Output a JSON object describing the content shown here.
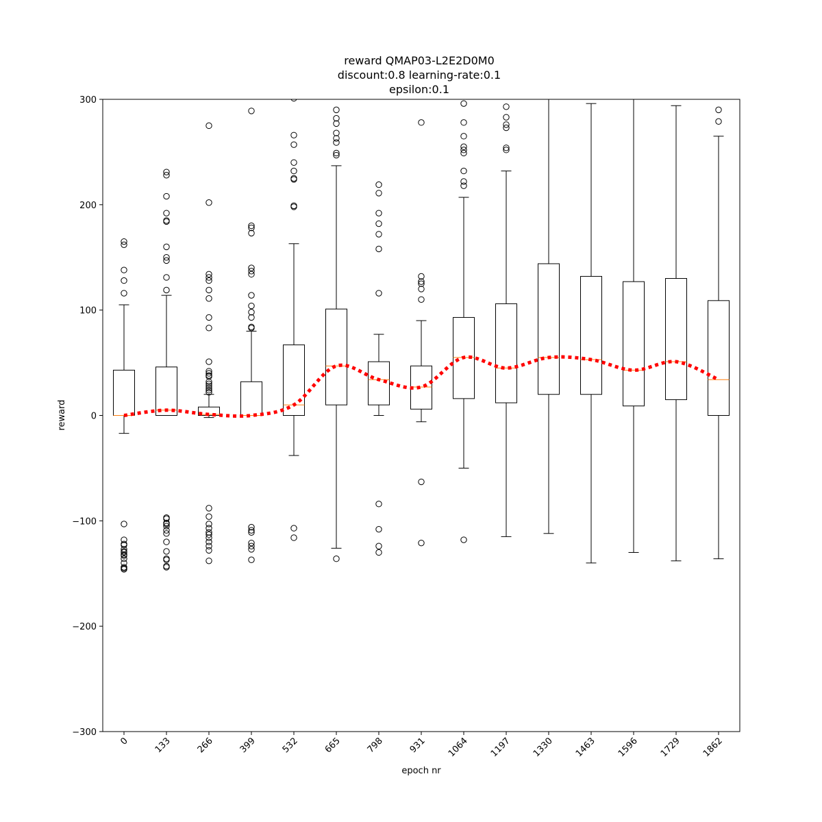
{
  "chart_data": {
    "type": "box",
    "title_lines": [
      "reward QMAP03-L2E2D0M0",
      "discount:0.8 learning-rate:0.1",
      "epsilon:0.1"
    ],
    "xlabel": "epoch nr",
    "ylabel": "reward",
    "ylim": [
      -300,
      300
    ],
    "yticks": [
      -300,
      -200,
      -100,
      0,
      100,
      200,
      300
    ],
    "ytick_labels": [
      "−300",
      "−200",
      "−100",
      "0",
      "100",
      "200",
      "300"
    ],
    "categories": [
      "0",
      "133",
      "266",
      "399",
      "532",
      "665",
      "798",
      "931",
      "1064",
      "1197",
      "1330",
      "1463",
      "1596",
      "1729",
      "1862"
    ],
    "boxes": [
      {
        "whislo": -17,
        "q1": 0,
        "med": 0,
        "q3": 43,
        "whishi": 105,
        "fliers": [
          165,
          162,
          138,
          128,
          116,
          -103,
          -118,
          -122,
          -123,
          -127,
          -129,
          -130,
          -132,
          -133,
          -136,
          -140,
          -144,
          -145,
          -146
        ]
      },
      {
        "whislo": 0,
        "q1": 0,
        "med": 5,
        "q3": 46,
        "whishi": 114,
        "fliers": [
          231,
          228,
          208,
          192,
          185,
          184,
          160,
          150,
          147,
          131,
          119,
          -97,
          -98,
          -102,
          -103,
          -105,
          -109,
          -112,
          -120,
          -129,
          -136,
          -137,
          -143,
          -144
        ]
      },
      {
        "whislo": -2,
        "q1": 0,
        "med": 1,
        "q3": 8,
        "whishi": 20,
        "fliers": [
          275,
          202,
          134,
          131,
          128,
          119,
          111,
          93,
          83,
          51,
          42,
          40,
          38,
          37,
          32,
          30,
          28,
          26,
          24,
          22,
          -88,
          -96,
          -103,
          -107,
          -111,
          -113,
          -116,
          -120,
          -124,
          -128,
          -138
        ]
      },
      {
        "whislo": 0,
        "q1": 0,
        "med": 0,
        "q3": 32,
        "whishi": 80,
        "fliers": [
          289,
          180,
          178,
          173,
          140,
          137,
          134,
          114,
          104,
          98,
          93,
          84,
          83,
          -106,
          -109,
          -111,
          -121,
          -124,
          -127,
          -137
        ]
      },
      {
        "whislo": -38,
        "q1": 0,
        "med": 10,
        "q3": 67,
        "whishi": 163,
        "fliers": [
          301,
          266,
          257,
          240,
          232,
          225,
          224,
          199,
          198,
          -107,
          -116
        ]
      },
      {
        "whislo": -126,
        "q1": 10,
        "med": 47,
        "q3": 101,
        "whishi": 237,
        "fliers": [
          290,
          282,
          277,
          268,
          263,
          259,
          249,
          247,
          -136
        ]
      },
      {
        "whislo": 0,
        "q1": 10,
        "med": 34,
        "q3": 51,
        "whishi": 77,
        "fliers": [
          219,
          211,
          192,
          182,
          172,
          158,
          116,
          -84,
          -108,
          -124,
          -130
        ]
      },
      {
        "whislo": -6,
        "q1": 6,
        "med": 27,
        "q3": 47,
        "whishi": 90,
        "fliers": [
          278,
          132,
          127,
          125,
          120,
          110,
          -63,
          -121
        ]
      },
      {
        "whislo": -50,
        "q1": 16,
        "med": 55,
        "q3": 93,
        "whishi": 207,
        "fliers": [
          296,
          278,
          265,
          255,
          252,
          249,
          232,
          222,
          218,
          -118
        ]
      },
      {
        "whislo": -115,
        "q1": 12,
        "med": 45,
        "q3": 106,
        "whishi": 232,
        "fliers": [
          293,
          283,
          276,
          273,
          254,
          252
        ]
      },
      {
        "whislo": -112,
        "q1": 20,
        "med": 55,
        "q3": 144,
        "whishi": 301,
        "fliers": []
      },
      {
        "whislo": -140,
        "q1": 20,
        "med": 53,
        "q3": 132,
        "whishi": 296,
        "fliers": []
      },
      {
        "whislo": -130,
        "q1": 9,
        "med": 43,
        "q3": 127,
        "whishi": 301,
        "fliers": []
      },
      {
        "whislo": -138,
        "q1": 15,
        "med": 51,
        "q3": 130,
        "whishi": 294,
        "fliers": []
      },
      {
        "whislo": -136,
        "q1": 0,
        "med": 34,
        "q3": 109,
        "whishi": 265,
        "fliers": [
          290,
          279
        ]
      }
    ],
    "trend": [
      0,
      5,
      1,
      0,
      10,
      47,
      34,
      27,
      55,
      45,
      55,
      53,
      43,
      51,
      34
    ],
    "colors": {
      "box": "#000000",
      "median": "#ff7f0e",
      "trend": "#ff0000",
      "flier": "#000000"
    },
    "grid": false,
    "legend": null
  }
}
